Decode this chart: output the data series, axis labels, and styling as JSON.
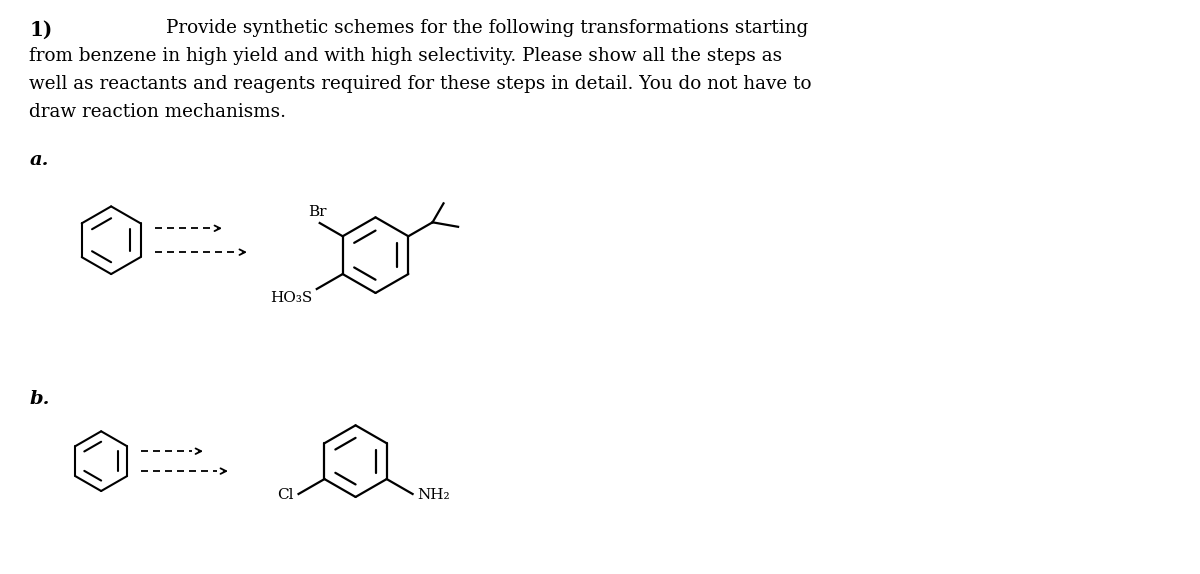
{
  "bg_color": "#ffffff",
  "fig_width": 12.0,
  "fig_height": 5.74,
  "title_bold": "1)",
  "font_family": "DejaVu Serif",
  "text_fontsize": 13.2,
  "label_fontsize": 14.0,
  "desc_lines": [
    "Provide synthetic schemes for the following transformations starting",
    "from benzene in high yield and with high selectivity. Please show all the steps as",
    "well as reactants and reagents required for these steps in detail. You do not have to",
    "draw reaction mechanisms."
  ],
  "label_a": "a.",
  "label_b": "b."
}
